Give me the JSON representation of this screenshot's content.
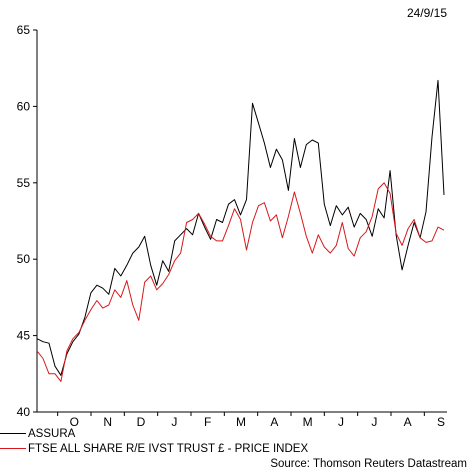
{
  "chart_data": {
    "type": "line",
    "date_label": "24/9/15",
    "ylim": [
      40,
      65
    ],
    "yticks": [
      40,
      45,
      50,
      55,
      60,
      65
    ],
    "x_tick_labels": [
      "O",
      "N",
      "D",
      "J",
      "F",
      "M",
      "A",
      "M",
      "J",
      "J",
      "A",
      "S"
    ],
    "grid": false,
    "legend_position": "bottom-left",
    "series": [
      {
        "name": "ASSURA",
        "color": "#000000",
        "values": [
          44.8,
          44.6,
          44.5,
          43.0,
          42.4,
          43.8,
          44.6,
          45.1,
          46.2,
          47.8,
          48.3,
          48.1,
          47.7,
          49.4,
          48.9,
          49.6,
          50.4,
          50.8,
          51.5,
          49.6,
          48.3,
          49.9,
          49.2,
          51.2,
          51.6,
          52.0,
          51.6,
          53.0,
          52.1,
          51.3,
          52.6,
          52.4,
          53.6,
          53.9,
          52.9,
          53.9,
          60.2,
          58.9,
          57.6,
          56.0,
          57.2,
          56.5,
          54.5,
          57.9,
          56.0,
          57.5,
          57.8,
          57.6,
          53.6,
          52.2,
          53.5,
          52.9,
          53.4,
          52.1,
          53.0,
          52.6,
          51.5,
          53.3,
          52.7,
          55.8,
          51.6,
          49.3,
          50.9,
          52.4,
          51.4,
          53.1,
          58.0,
          61.7,
          54.2
        ],
        "pct_note": null
      },
      {
        "name": "FTSE ALL SHARE R/E IVST TRUST £ - PRICE INDEX",
        "color": "#d7191c",
        "values": [
          44.0,
          43.5,
          42.5,
          42.5,
          42.0,
          44.0,
          44.8,
          45.2,
          46.0,
          46.7,
          47.3,
          46.8,
          47.0,
          48.0,
          47.5,
          48.6,
          47.0,
          46.0,
          48.5,
          48.9,
          48.0,
          48.4,
          49.0,
          49.9,
          50.4,
          52.4,
          52.6,
          53.0,
          52.3,
          51.5,
          51.2,
          51.2,
          52.2,
          53.3,
          52.6,
          50.6,
          52.4,
          53.5,
          53.7,
          52.5,
          52.9,
          51.4,
          52.8,
          54.4,
          53.0,
          51.5,
          50.4,
          51.6,
          50.8,
          50.4,
          50.9,
          52.4,
          50.7,
          50.2,
          51.4,
          51.8,
          52.8,
          54.6,
          55.0,
          54.3,
          51.7,
          50.9,
          52.0,
          52.6,
          51.4,
          51.1,
          51.2,
          52.1,
          51.9
        ],
        "pct_note": null
      }
    ]
  },
  "source_text": "Source: Thomson Reuters Datastream"
}
